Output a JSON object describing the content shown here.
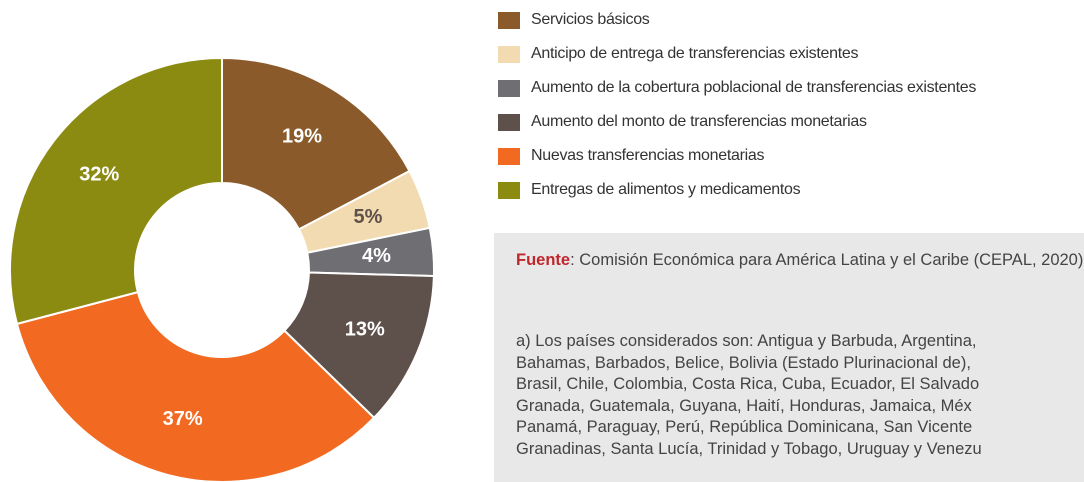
{
  "chart_data": {
    "type": "donut",
    "categories": [
      "Servicios básicos",
      "Anticipo de entrega de transferencias existentes",
      "Aumento de la cobertura poblacional de transferencias existentes",
      "Aumento del monto de transferencias monetarias",
      "Nuevas transferencias monetarias",
      "Entregas de alimentos y medicamentos"
    ],
    "values": [
      19,
      5,
      4,
      13,
      37,
      32
    ],
    "value_labels": [
      "19%",
      "5%",
      "4%",
      "13%",
      "37%",
      "32%"
    ],
    "colors": [
      "#8b5a2b",
      "#f2dbb0",
      "#6e6e73",
      "#5e504a",
      "#f26a21",
      "#8b8b12"
    ],
    "label_colors": [
      "#ffffff",
      "#5e504a",
      "#ffffff",
      "#ffffff",
      "#ffffff",
      "#ffffff"
    ]
  },
  "source": {
    "label": "Fuente",
    "text": ": Comisión Económica para América Latina y el Caribe (CEPAL, 2020)",
    "note_lines": [
      "a) Los países considerados son: Antigua y Barbuda, Argentina,",
      "Bahamas, Barbados, Belice, Bolivia (Estado Plurinacional de),",
      "Brasil, Chile, Colombia, Costa Rica, Cuba, Ecuador, El Salvado",
      "Granada, Guatemala, Guyana, Haití, Honduras, Jamaica, Méx",
      "Panamá, Paraguay, Perú, República Dominicana, San Vicente",
      "Granadinas, Santa Lucía, Trinidad y Tobago, Uruguay y Venezu"
    ]
  }
}
